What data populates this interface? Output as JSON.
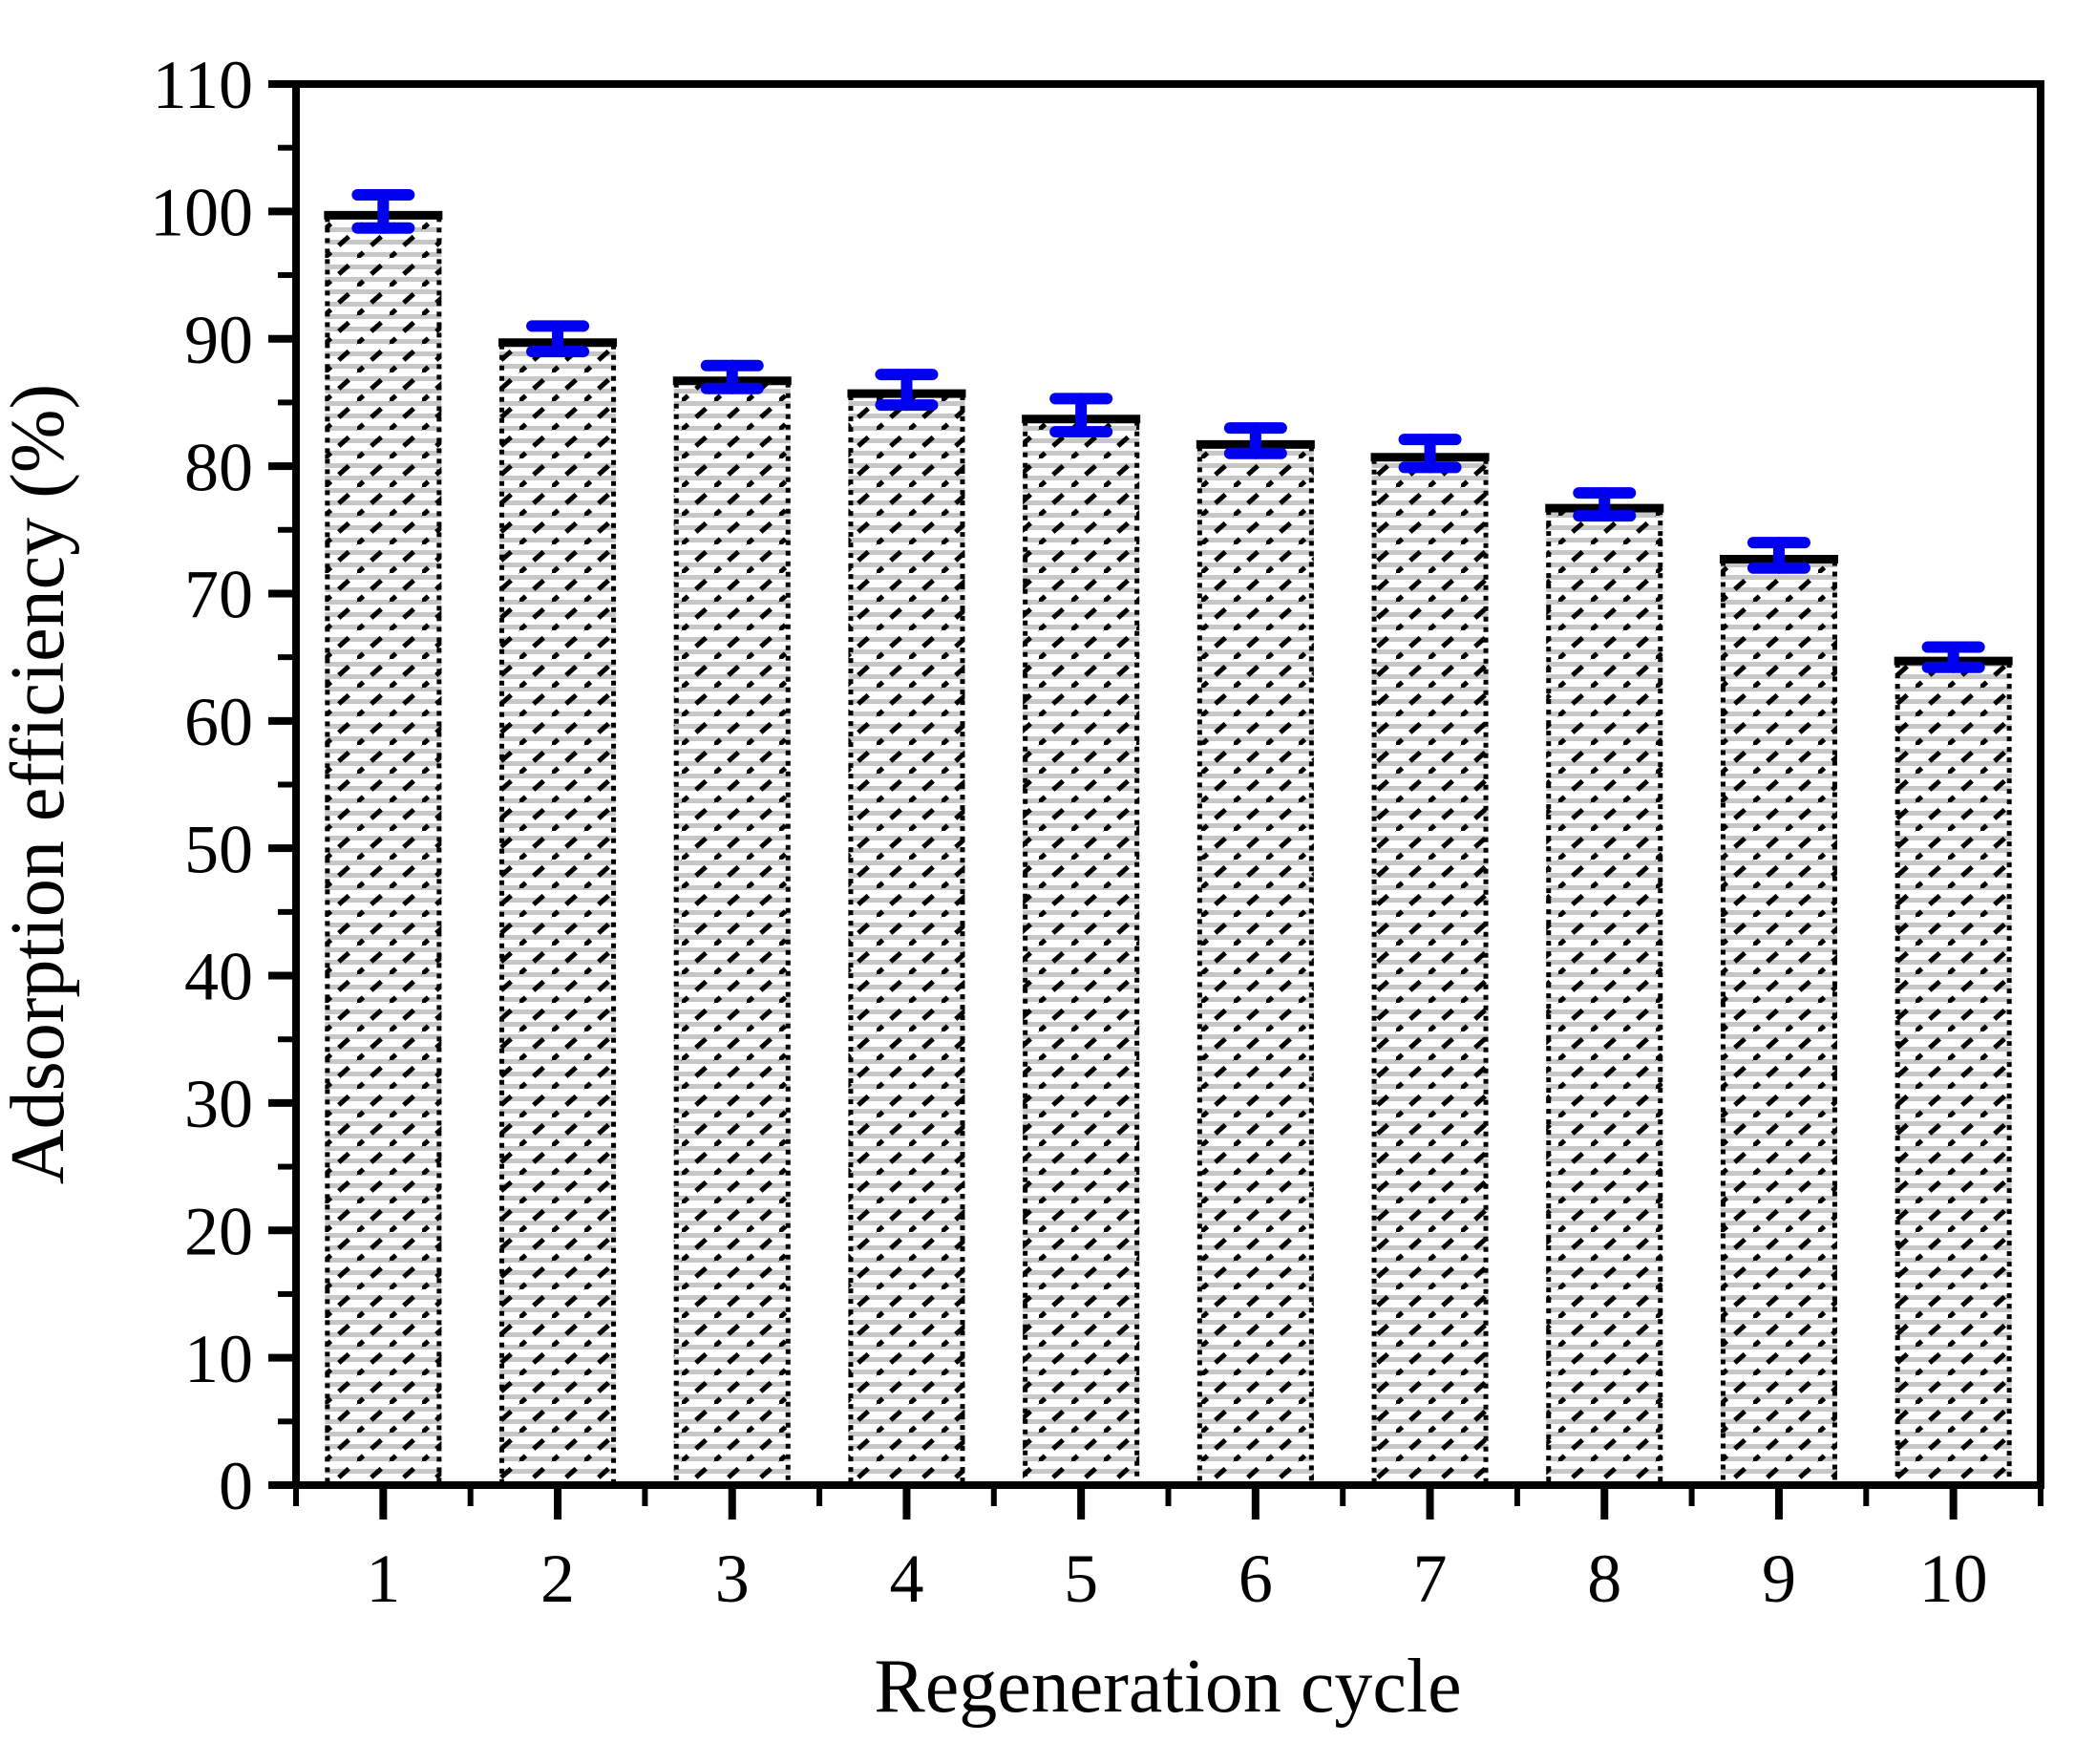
{
  "figure": {
    "background": "#ffffff",
    "description": "Bar chart of adsorption efficiency versus regeneration cycle with blue error bars and hatched bars"
  },
  "chart_data": {
    "type": "bar",
    "title": "",
    "xlabel": "Regeneration cycle",
    "ylabel": "Adsorption efficiency (%)",
    "categories": [
      "1",
      "2",
      "3",
      "4",
      "5",
      "6",
      "7",
      "8",
      "9",
      "10"
    ],
    "values": [
      100,
      90,
      87,
      86,
      84,
      82,
      81,
      77,
      73,
      65
    ],
    "errors": [
      1.3,
      1.0,
      0.9,
      1.2,
      1.3,
      1.0,
      1.1,
      0.9,
      1.0,
      0.8
    ],
    "series_name": "Adsorption efficiency",
    "ylim": [
      0,
      110
    ],
    "yticks": [
      0,
      10,
      20,
      30,
      40,
      50,
      60,
      70,
      80,
      90,
      100,
      110
    ],
    "ytick_minor_step": 5,
    "grid": false,
    "legend": "none",
    "style": {
      "bar_fill": "#ffffff",
      "hatch_horizontal_stripe_color": "#c7c7c7",
      "hatch_diagonal_dash_color": "#000000",
      "bar_edge_color": "#000000",
      "bar_top_cap": "solid",
      "bar_side_edge": "dotted",
      "error_bar_color": "#0000f0",
      "axis_color": "#000000",
      "text_color": "#000000"
    }
  }
}
